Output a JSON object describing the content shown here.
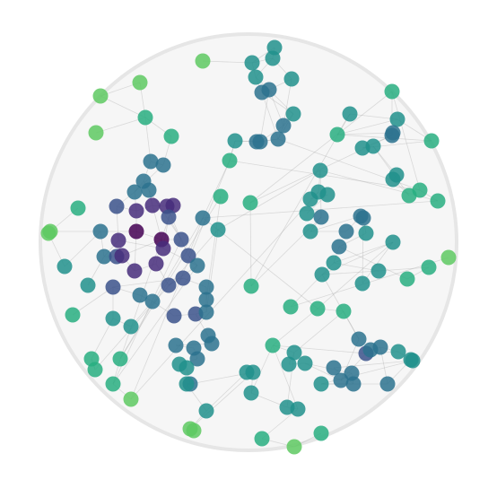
{
  "diagram": {
    "type": "network-graph",
    "boundary": "circle",
    "background_color": "#f6f6f6",
    "boundary_stroke_color": "#e6e6e6",
    "edge_color": "#9a9a9a",
    "colormap": "viridis",
    "node_colors": [
      "#440154",
      "#472d7b",
      "#3b528b",
      "#2c728e",
      "#21918c",
      "#28ae80",
      "#5ec962",
      "#7ad151"
    ]
  }
}
